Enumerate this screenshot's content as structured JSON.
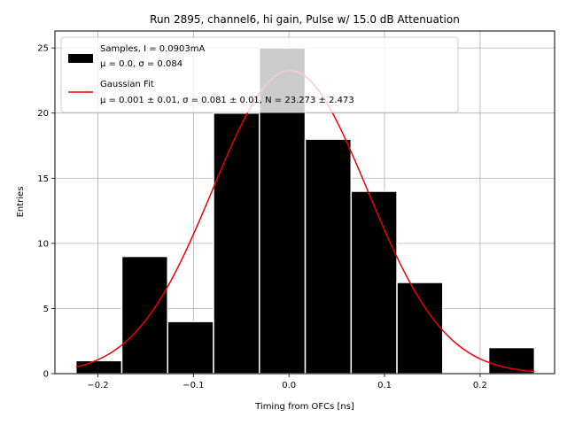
{
  "chart_data": {
    "type": "bar",
    "title": "Run 2895, channel6, hi gain, Pulse w/ 15.0 dB Attenuation",
    "xlabel": "Timing from OFCs [ns]",
    "ylabel": "Entries",
    "xlim": [
      -0.245,
      0.278
    ],
    "ylim": [
      0,
      26.3
    ],
    "xticks": [
      -0.2,
      -0.1,
      0.0,
      0.1,
      0.2
    ],
    "xtick_labels": [
      "−0.2",
      "−0.1",
      "0.0",
      "0.1",
      "0.2"
    ],
    "yticks": [
      0,
      5,
      10,
      15,
      20,
      25
    ],
    "ytick_labels": [
      "0",
      "5",
      "10",
      "15",
      "20",
      "25"
    ],
    "grid": true,
    "legend_position": "top-left",
    "histogram": {
      "name_line1": "Samples, I = 0.0903mA",
      "name_line2": "μ = 0.0, σ = 0.084",
      "color": "#000000",
      "bins": [
        {
          "x0": -0.223,
          "x1": -0.175,
          "value": 1
        },
        {
          "x0": -0.175,
          "x1": -0.127,
          "value": 9
        },
        {
          "x0": -0.127,
          "x1": -0.079,
          "value": 4
        },
        {
          "x0": -0.079,
          "x1": -0.031,
          "value": 20
        },
        {
          "x0": -0.031,
          "x1": 0.017,
          "value": 25
        },
        {
          "x0": 0.017,
          "x1": 0.065,
          "value": 18
        },
        {
          "x0": 0.065,
          "x1": 0.113,
          "value": 14
        },
        {
          "x0": 0.113,
          "x1": 0.161,
          "value": 7
        },
        {
          "x0": 0.161,
          "x1": 0.209,
          "value": 0
        },
        {
          "x0": 0.209,
          "x1": 0.257,
          "value": 2
        }
      ]
    },
    "fit": {
      "name_line1": "Gaussian Fit",
      "name_line2": "μ = 0.001 ± 0.01, σ = 0.081 ± 0.01, N = 23.273 ± 2.473",
      "color": "#ee0000",
      "mu": 0.001,
      "sigma": 0.081,
      "N": 23.273,
      "x_range": [
        -0.223,
        0.257
      ]
    }
  }
}
